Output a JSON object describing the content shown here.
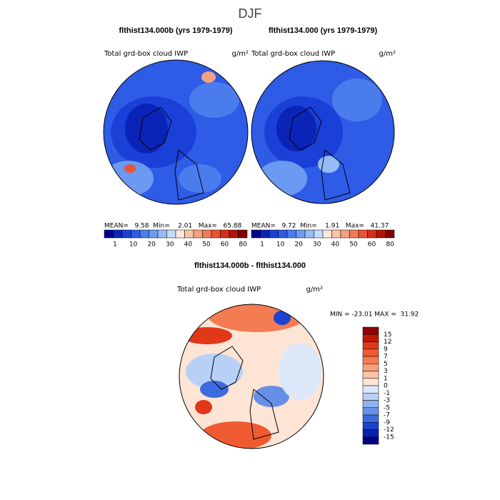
{
  "title": "DJF",
  "panels": [
    {
      "title": "flthist134.000b (yrs 1979-1979)",
      "variable": "Total grd-box cloud IWP",
      "units": "g/m²",
      "stats": "MEAN=   9.58  Min=    2.01   Max=   65.88"
    },
    {
      "title": "flthist134.000 (yrs 1979-1979)",
      "variable": "Total grd-box cloud IWP",
      "units": "g/m²",
      "stats": "MEAN=   9.72  Min=    1.91   Max=   41.37"
    }
  ],
  "colorbar": {
    "colors": [
      "#00008b",
      "#0a24b8",
      "#1a40d8",
      "#2e5ce6",
      "#4a7cee",
      "#6c9af2",
      "#96bcf8",
      "#c4dcfc",
      "#fce8dc",
      "#f8c4a4",
      "#f4a080",
      "#f07a58",
      "#e85436",
      "#d4301c",
      "#b4140a",
      "#800000"
    ],
    "labels": [
      1,
      10,
      20,
      30,
      40,
      50,
      60,
      80
    ]
  },
  "difference": {
    "title": "flthist134.000b - flthist134.000",
    "variable": "Total grd-box cloud IWP",
    "units": "g/m²",
    "stats": "MIN = -23.01 MAX =  31.92",
    "colors": [
      "#900000",
      "#c01808",
      "#e03818",
      "#f05a30",
      "#f47c52",
      "#f8a07a",
      "#fbc4a6",
      "#fde4d4",
      "#dce8fa",
      "#b8d0f6",
      "#8eb2f0",
      "#6690e8",
      "#3e6ae0",
      "#1c44d0",
      "#0a22b0",
      "#000080"
    ],
    "labels": [
      15,
      12,
      9,
      7,
      5,
      3,
      1,
      0,
      -1,
      -3,
      -5,
      -7,
      -9,
      -12,
      -15
    ]
  }
}
